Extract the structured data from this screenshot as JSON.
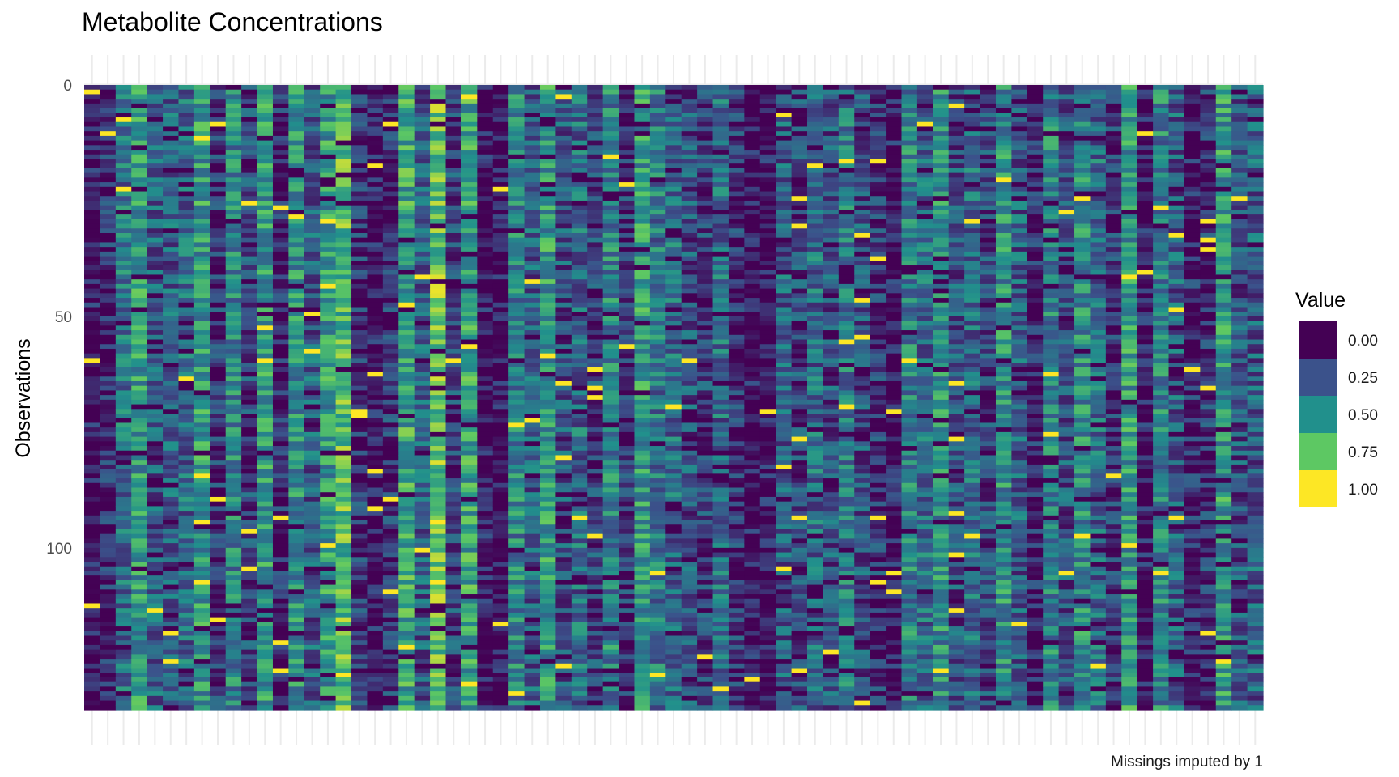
{
  "chart_data": {
    "type": "heatmap",
    "title": "Metabolite Concentrations",
    "xlabel": "",
    "ylabel": "Observations",
    "caption": "Missings imputed by 1",
    "n_rows": 135,
    "n_cols": 75,
    "ylim": [
      0,
      135
    ],
    "y_ticks": [
      0,
      50,
      100
    ],
    "y_tick_labels": [
      "0",
      "50",
      "100"
    ],
    "x_tick_labels_shown": false,
    "grid": true,
    "legend": {
      "title": "Value",
      "placement": "right",
      "breaks": [
        0.0,
        0.25,
        0.5,
        0.75,
        1.0
      ],
      "labels": [
        "0.00",
        "0.25",
        "0.50",
        "0.75",
        "1.00"
      ],
      "colors": [
        "#440154",
        "#3b528b",
        "#21908c",
        "#5dc863",
        "#fde725"
      ]
    },
    "column_mean_values": [
      0.05,
      0.12,
      0.38,
      0.55,
      0.3,
      0.3,
      0.35,
      0.55,
      0.15,
      0.45,
      0.2,
      0.55,
      0.1,
      0.5,
      0.3,
      0.55,
      0.7,
      0.15,
      0.05,
      0.15,
      0.6,
      0.3,
      0.75,
      0.2,
      0.6,
      0.05,
      0.02,
      0.45,
      0.3,
      0.55,
      0.25,
      0.35,
      0.2,
      0.45,
      0.15,
      0.55,
      0.4,
      0.35,
      0.25,
      0.2,
      0.35,
      0.15,
      0.05,
      0.05,
      0.3,
      0.2,
      0.35,
      0.25,
      0.4,
      0.25,
      0.15,
      0.05,
      0.45,
      0.35,
      0.5,
      0.25,
      0.35,
      0.2,
      0.5,
      0.3,
      0.1,
      0.45,
      0.25,
      0.5,
      0.35,
      0.15,
      0.55,
      0.05,
      0.45,
      0.3,
      0.1,
      0.15,
      0.55,
      0.25,
      0.3
    ],
    "data_note": "Cell values are a 135x75 matrix on a 0–1 scale"
  }
}
